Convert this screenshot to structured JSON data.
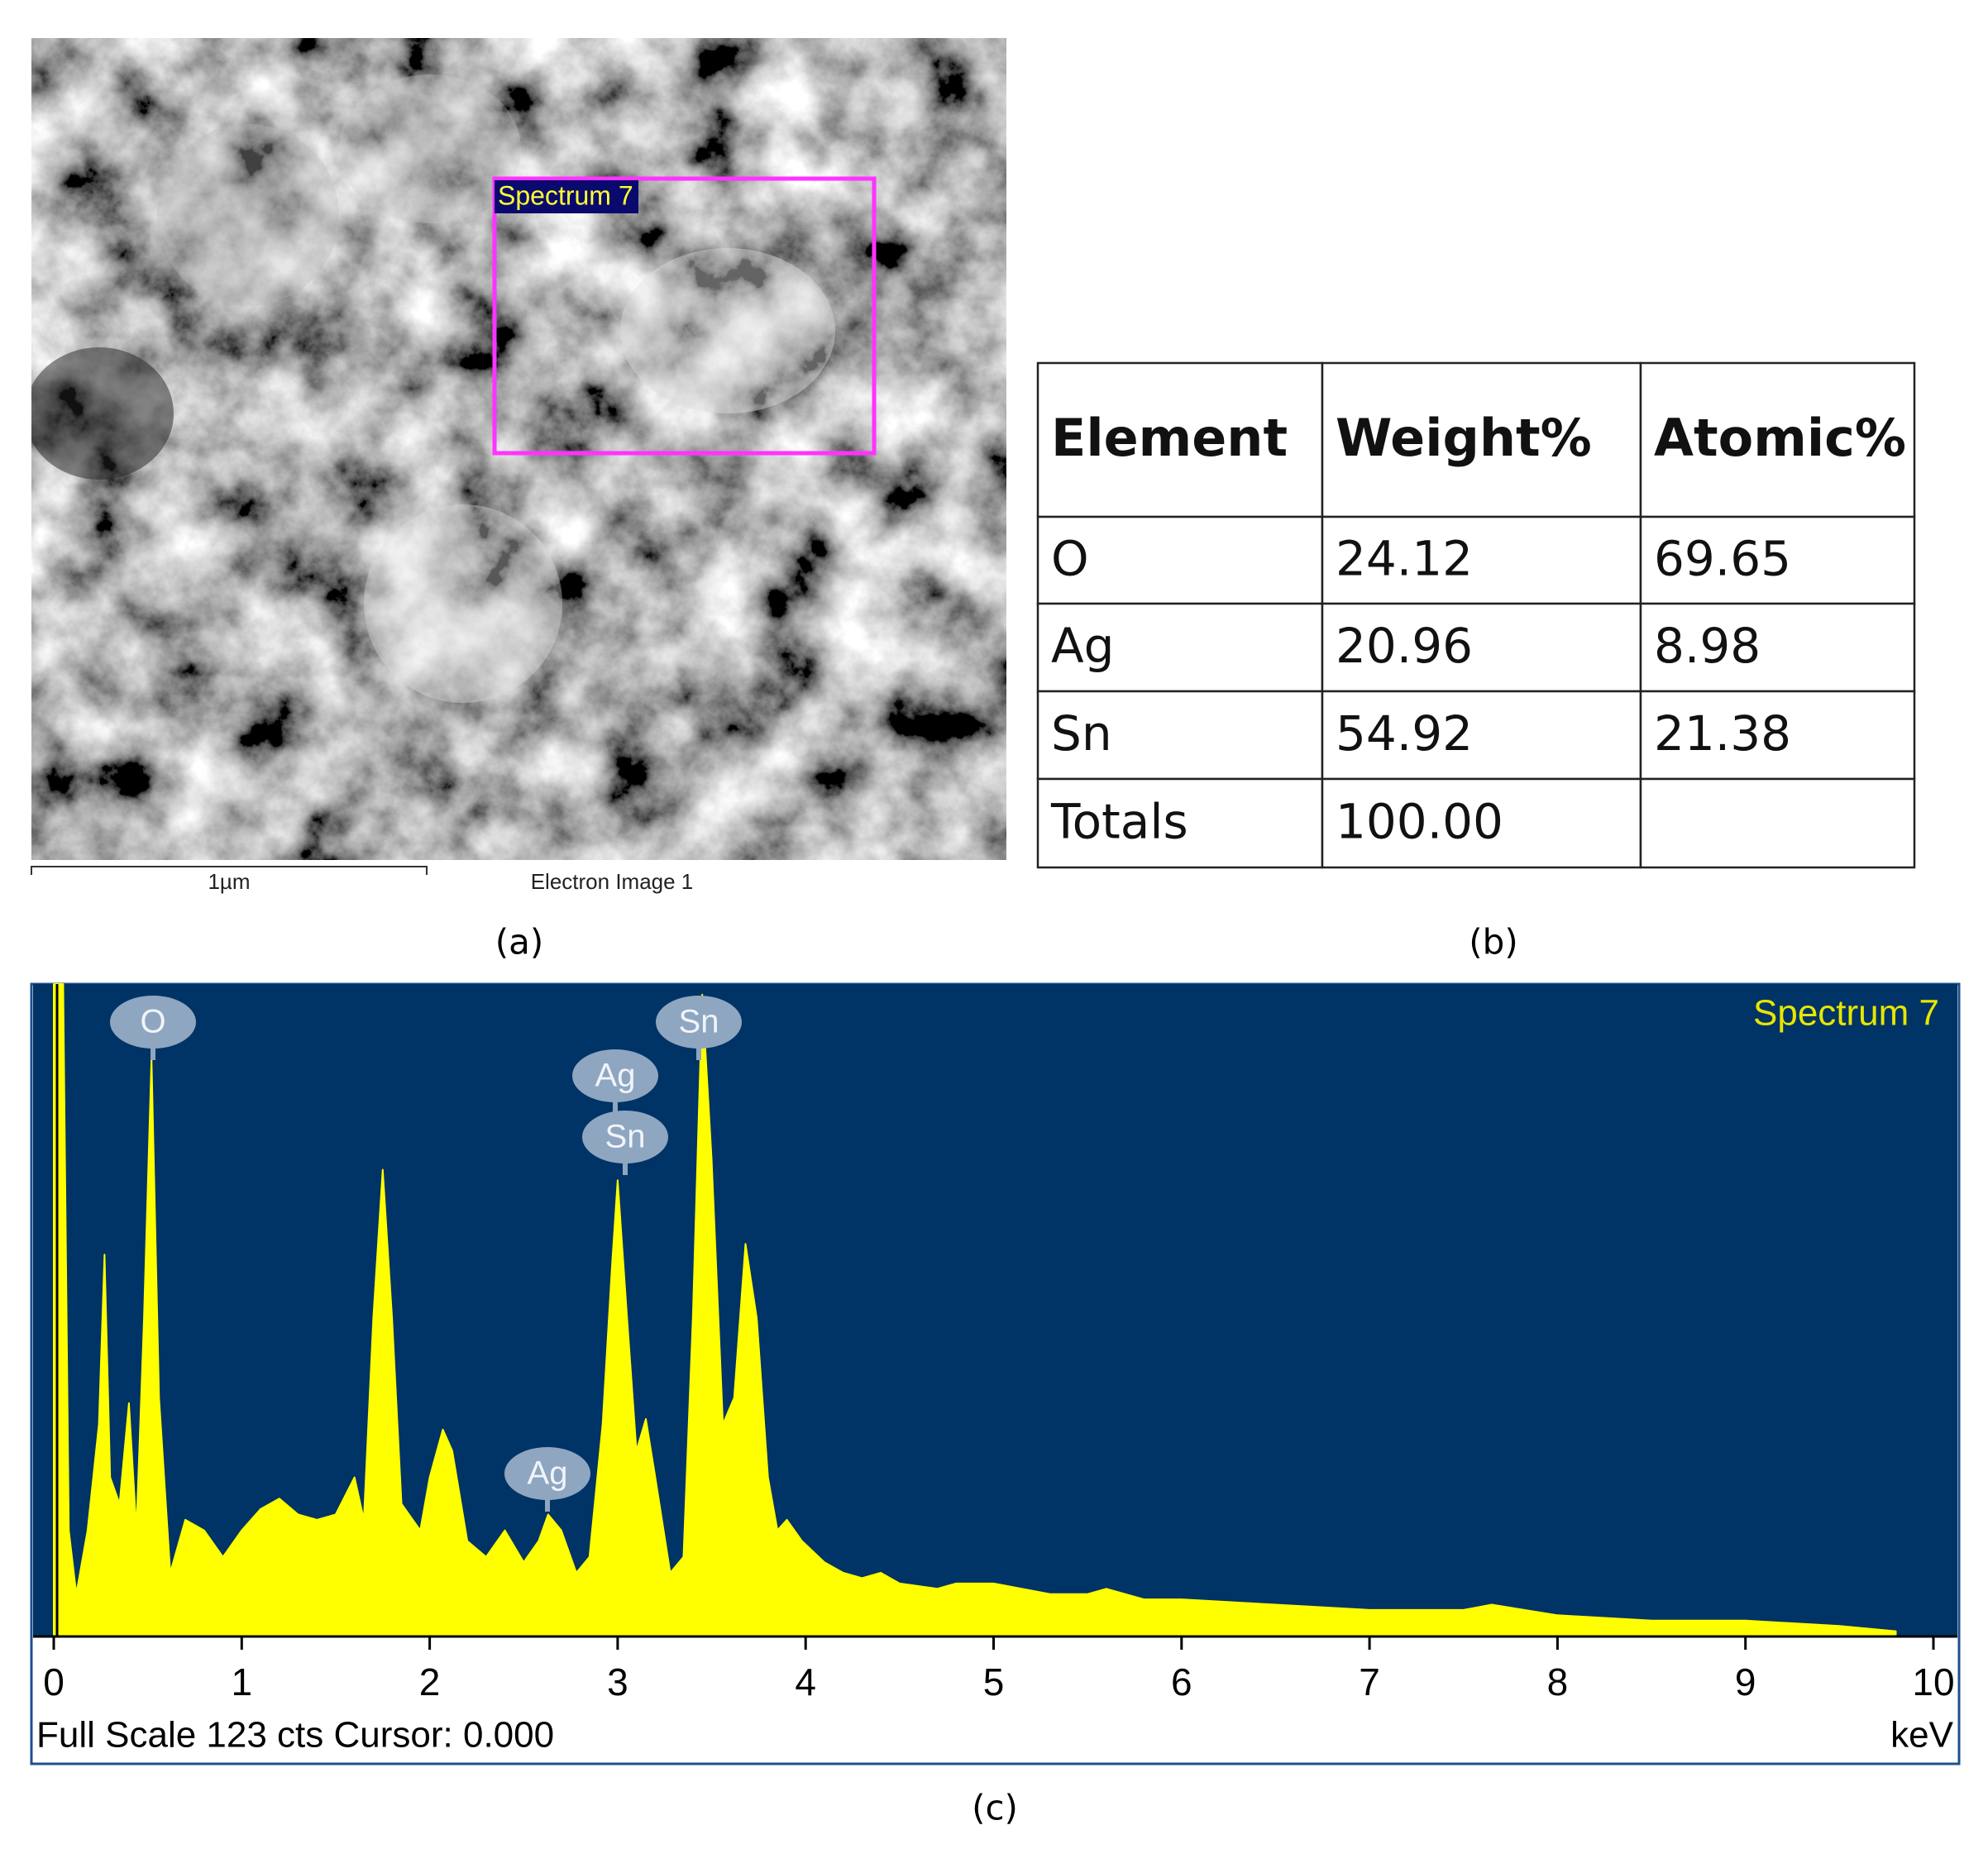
{
  "panel_labels": [
    "(a)",
    "(b)",
    "(c)"
  ],
  "sem_image": {
    "region_label": "Spectrum 7",
    "scale_bar": "1µm",
    "caption": "Electron Image 1"
  },
  "table": {
    "header": [
      "Element",
      "Weight%",
      "Atomic%"
    ],
    "rows": [
      [
        "O",
        "24.12",
        "69.65"
      ],
      [
        "Ag",
        "20.96",
        "8.98"
      ],
      [
        "Sn",
        "54.92",
        "21.38"
      ],
      [
        "Totals",
        "100.00"
      ]
    ]
  },
  "chart_data": {
    "type": "area",
    "title": "Spectrum 7",
    "x_label": "keV",
    "footer": "Full Scale 123 cts Cursor: 0.000",
    "peak_labels": [
      "O",
      "Ag",
      "Sn",
      "Sn",
      "Ag"
    ],
    "x": [
      0,
      0.02,
      0.05,
      0.08,
      0.12,
      0.18,
      0.24,
      0.27,
      0.3,
      0.35,
      0.4,
      0.44,
      0.48,
      0.52,
      0.56,
      0.62,
      0.7,
      0.8,
      0.9,
      1.0,
      1.1,
      1.2,
      1.3,
      1.4,
      1.5,
      1.6,
      1.65,
      1.7,
      1.75,
      1.8,
      1.85,
      1.95,
      2.0,
      2.07,
      2.12,
      2.2,
      2.3,
      2.4,
      2.5,
      2.58,
      2.63,
      2.7,
      2.78,
      2.85,
      2.92,
      2.97,
      3.0,
      3.05,
      3.1,
      3.15,
      3.2,
      3.28,
      3.35,
      3.4,
      3.45,
      3.5,
      3.56,
      3.62,
      3.68,
      3.74,
      3.8,
      3.85,
      3.9,
      3.98,
      4.1,
      4.2,
      4.3,
      4.4,
      4.5,
      4.7,
      4.8,
      5.0,
      5.3,
      5.5,
      5.6,
      5.8,
      6.0,
      6.5,
      7.0,
      7.5,
      7.65,
      8.0,
      8.5,
      9.0,
      9.5,
      9.8
    ],
    "values": [
      123,
      123,
      123,
      20,
      8,
      20,
      40,
      72,
      30,
      25,
      44,
      20,
      60,
      109,
      45,
      12,
      22,
      20,
      15,
      20,
      24,
      26,
      23,
      22,
      23,
      30,
      22,
      60,
      88,
      60,
      25,
      20,
      30,
      39,
      35,
      18,
      15,
      20,
      14,
      18,
      23,
      20,
      12,
      15,
      40,
      70,
      86,
      60,
      35,
      41,
      30,
      12,
      15,
      60,
      121,
      90,
      40,
      45,
      74,
      60,
      30,
      20,
      22,
      18,
      14,
      12,
      11,
      12,
      10,
      9,
      10,
      10,
      8,
      8,
      9,
      7,
      7,
      6,
      5,
      5,
      6,
      4,
      3,
      3,
      2,
      1
    ],
    "color": "#ffff00",
    "background": "#003366",
    "xlim": [
      0,
      10
    ],
    "ylim": [
      0,
      123
    ],
    "xticks": [
      0,
      1,
      2,
      3,
      4,
      5,
      6,
      7,
      8,
      9,
      10
    ]
  }
}
